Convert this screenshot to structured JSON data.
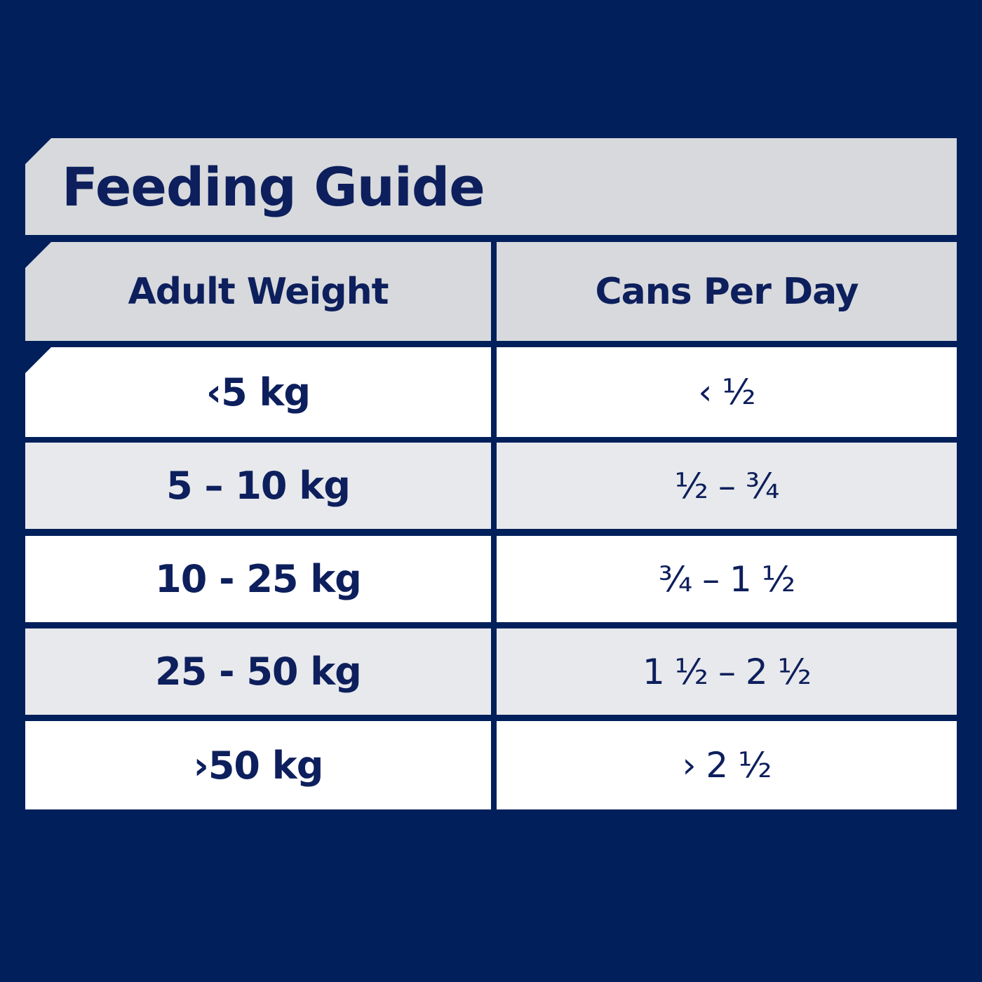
{
  "title": "Feeding Guide",
  "headers": {
    "weight": "Adult Weight",
    "cans": "Cans Per Day"
  },
  "rows": [
    {
      "weight": "‹5 kg",
      "cans": "‹ ½"
    },
    {
      "weight": "5 – 10 kg",
      "cans": "½ – ¾"
    },
    {
      "weight": "10 - 25 kg",
      "cans": "¾ – 1 ½"
    },
    {
      "weight": "25 - 50 kg",
      "cans": "1 ½ – 2 ½"
    },
    {
      "weight": "›50 kg",
      "cans": "› 2 ½"
    }
  ],
  "colors": {
    "background": "#001f5b",
    "text": "#0d1f5c",
    "header_gray": "#d7d9dc",
    "row_alt": "#e8e9ec",
    "row_white": "#ffffff"
  }
}
